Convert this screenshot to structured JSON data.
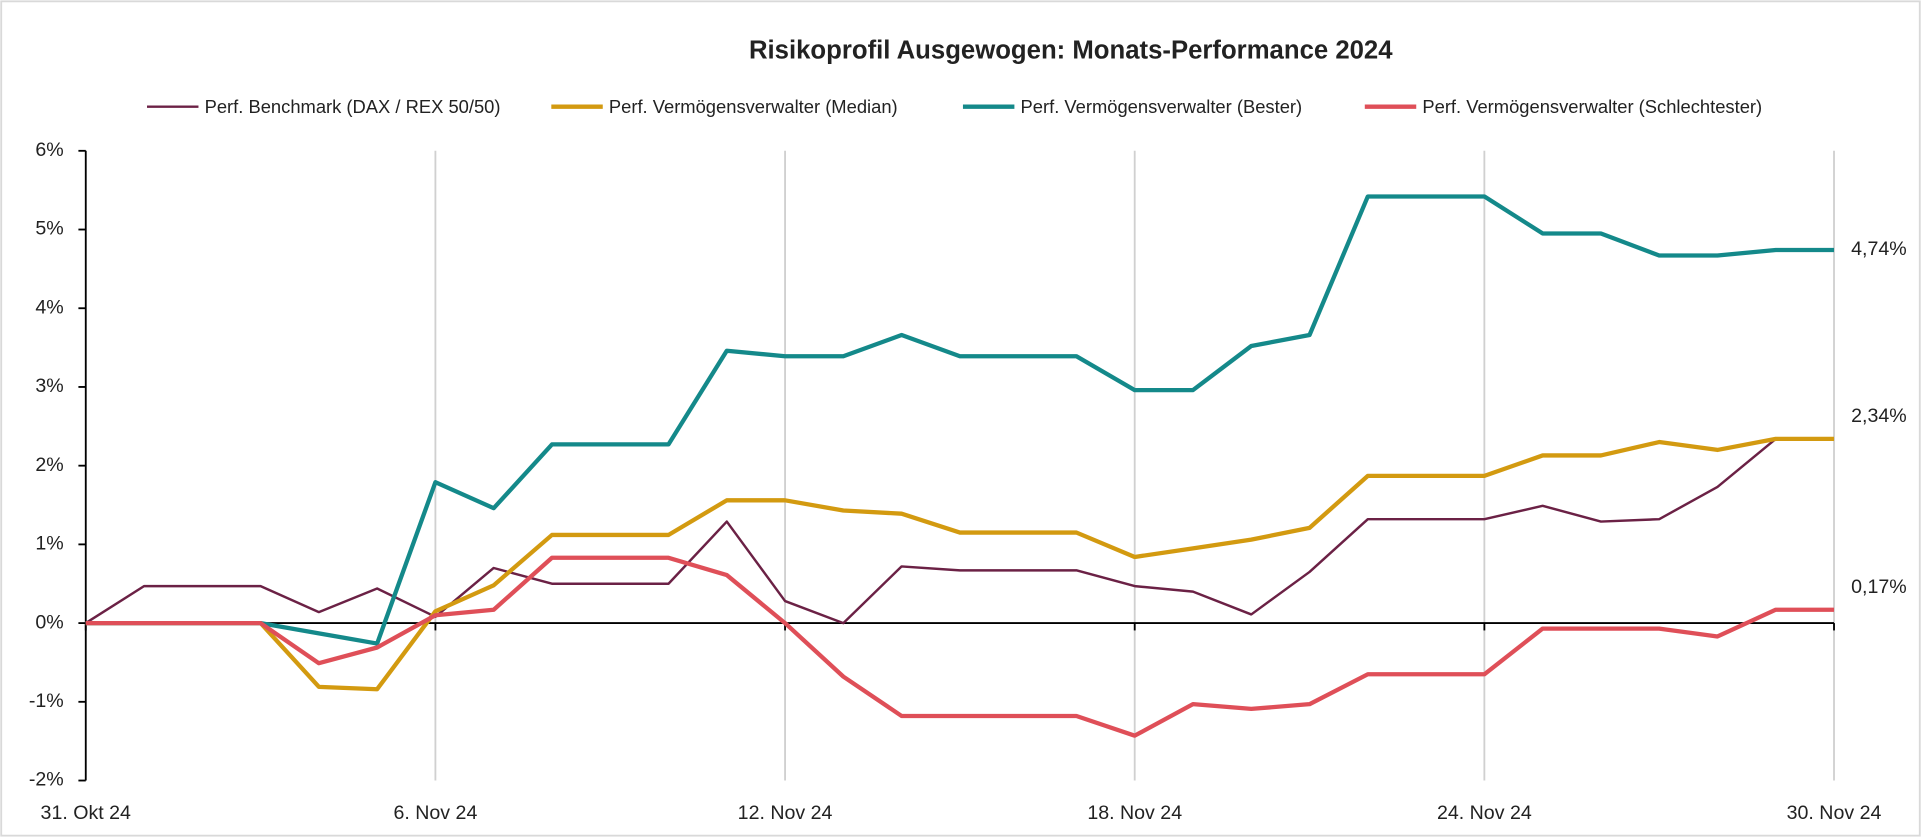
{
  "chart_data": {
    "type": "line",
    "title": "Risikoprofil Ausgewogen: Monats-Performance  2024",
    "legend": "top",
    "grid": true,
    "categories": [
      "31. Okt 24",
      null,
      null,
      null,
      null,
      null,
      "6. Nov 24",
      null,
      null,
      null,
      null,
      null,
      "12. Nov 24",
      null,
      null,
      null,
      null,
      null,
      "18. Nov 24",
      null,
      null,
      null,
      null,
      null,
      "24. Nov 24",
      null,
      null,
      null,
      null,
      null,
      "30. Nov 24"
    ],
    "ylim": [
      -2,
      6
    ],
    "yticks": [
      {
        "value": -2,
        "label": "-2%"
      },
      {
        "value": -1,
        "label": "-1%"
      },
      {
        "value": 0,
        "label": "0%"
      },
      {
        "value": 1,
        "label": "1%"
      },
      {
        "value": 2,
        "label": "2%"
      },
      {
        "value": 3,
        "label": "3%"
      },
      {
        "value": 4,
        "label": "4%"
      },
      {
        "value": 5,
        "label": "5%"
      },
      {
        "value": 6,
        "label": "6%"
      }
    ],
    "series": [
      {
        "name": "Perf. Benchmark (DAX / REX 50/50)",
        "color": "#6b2145",
        "values": [
          0,
          0.47,
          0.47,
          0.47,
          0.14,
          0.44,
          0.08,
          0.7,
          0.5,
          0.5,
          0.5,
          1.29,
          0.28,
          0,
          0.72,
          0.67,
          0.67,
          0.67,
          0.47,
          0.4,
          0.11,
          0.65,
          1.32,
          1.32,
          1.32,
          1.49,
          1.29,
          1.32,
          1.73,
          2.34,
          2.34
        ]
      },
      {
        "name": "Perf. Vermögensverwalter (Median)",
        "color": "#d39a10",
        "values": [
          0,
          0,
          0,
          0,
          -0.81,
          -0.84,
          0.15,
          0.48,
          1.12,
          1.12,
          1.12,
          1.56,
          1.56,
          1.43,
          1.39,
          1.15,
          1.15,
          1.15,
          0.84,
          0.95,
          1.06,
          1.21,
          1.87,
          1.87,
          1.87,
          2.13,
          2.13,
          2.3,
          2.2,
          2.34,
          2.34
        ],
        "value_labels": [
          null,
          null,
          null,
          null,
          null,
          null,
          null,
          null,
          null,
          null,
          null,
          null,
          null,
          null,
          null,
          null,
          null,
          null,
          null,
          null,
          null,
          null,
          null,
          null,
          null,
          null,
          null,
          null,
          null,
          null,
          "2,34%"
        ]
      },
      {
        "name": "Perf. Vermögensverwalter (Bester)",
        "color": "#14898a",
        "values": [
          0,
          0,
          0,
          0,
          -0.13,
          -0.26,
          1.79,
          1.46,
          2.27,
          2.27,
          2.27,
          3.46,
          3.39,
          3.39,
          3.66,
          3.39,
          3.39,
          3.39,
          2.96,
          2.96,
          3.52,
          3.66,
          5.42,
          5.42,
          5.42,
          4.95,
          4.95,
          4.67,
          4.67,
          4.74,
          4.74
        ],
        "value_labels": [
          null,
          null,
          null,
          null,
          null,
          null,
          null,
          null,
          null,
          null,
          null,
          null,
          null,
          null,
          null,
          null,
          null,
          null,
          null,
          null,
          null,
          null,
          null,
          null,
          null,
          null,
          null,
          null,
          null,
          null,
          "4,74%"
        ]
      },
      {
        "name": "Perf. Vermögensverwalter (Schlechtester)",
        "color": "#df4f58",
        "values": [
          0,
          0,
          0,
          0,
          -0.51,
          -0.31,
          0.1,
          0.17,
          0.83,
          0.83,
          0.83,
          0.61,
          0,
          -0.68,
          -1.18,
          -1.18,
          -1.18,
          -1.18,
          -1.43,
          -1.03,
          -1.09,
          -1.03,
          -0.65,
          -0.65,
          -0.65,
          -0.07,
          -0.07,
          -0.07,
          -0.17,
          0.17,
          0.17
        ],
        "value_labels": [
          null,
          null,
          null,
          null,
          null,
          null,
          null,
          null,
          null,
          null,
          null,
          null,
          null,
          null,
          null,
          null,
          null,
          null,
          null,
          null,
          null,
          null,
          null,
          null,
          null,
          null,
          null,
          null,
          null,
          null,
          "0,17%"
        ]
      }
    ]
  }
}
